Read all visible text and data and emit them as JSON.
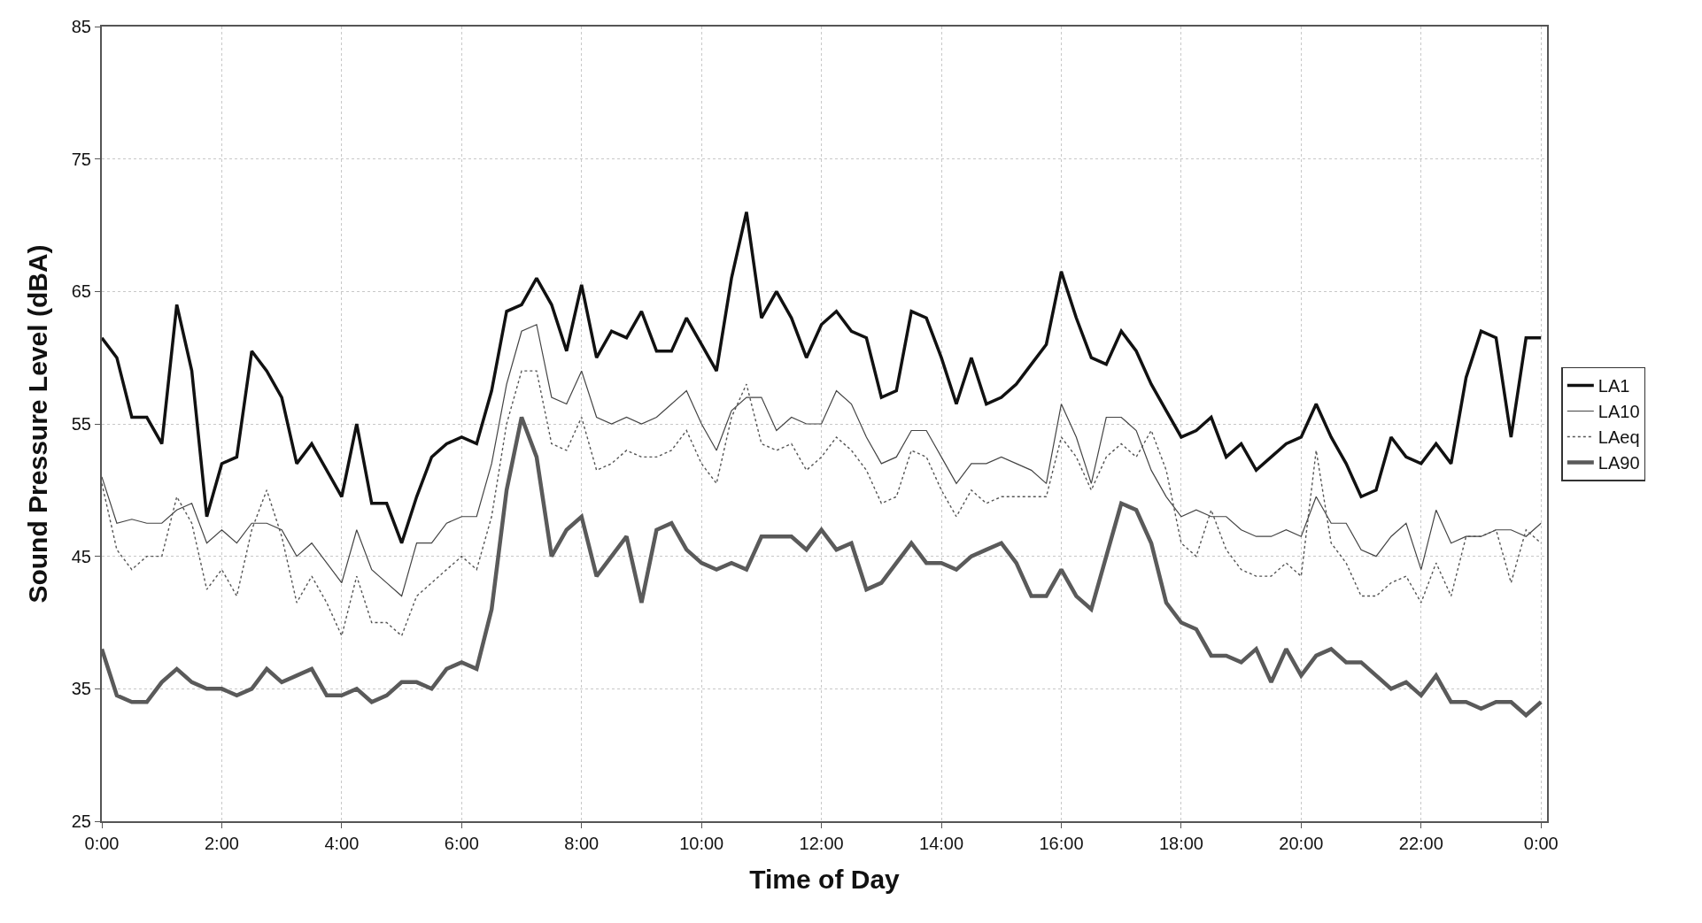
{
  "chart_data": {
    "type": "line",
    "xlabel": "Time of Day",
    "ylabel": "Sound Pressure Level (dBA)",
    "x": [
      0,
      0.25,
      0.5,
      0.75,
      1,
      1.25,
      1.5,
      1.75,
      2,
      2.25,
      2.5,
      2.75,
      3,
      3.25,
      3.5,
      3.75,
      4,
      4.25,
      4.5,
      4.75,
      5,
      5.25,
      5.5,
      5.75,
      6,
      6.25,
      6.5,
      6.75,
      7,
      7.25,
      7.5,
      7.75,
      8,
      8.25,
      8.5,
      8.75,
      9,
      9.25,
      9.5,
      9.75,
      10,
      10.25,
      10.5,
      10.75,
      11,
      11.25,
      11.5,
      11.75,
      12,
      12.25,
      12.5,
      12.75,
      13,
      13.25,
      13.5,
      13.75,
      14,
      14.25,
      14.5,
      14.75,
      15,
      15.25,
      15.5,
      15.75,
      16,
      16.25,
      16.5,
      16.75,
      17,
      17.25,
      17.5,
      17.75,
      18,
      18.25,
      18.5,
      18.75,
      19,
      19.25,
      19.5,
      19.75,
      20,
      20.25,
      20.5,
      20.75,
      21,
      21.25,
      21.5,
      21.75,
      22,
      22.25,
      22.5,
      22.75,
      23,
      23.25,
      23.5,
      23.75,
      24
    ],
    "series": [
      {
        "name": "LA1",
        "color": "#111111",
        "line_style": "solid",
        "values": [
          61.5,
          60,
          55.5,
          55.5,
          53.5,
          64,
          59,
          48,
          52,
          52.5,
          60.5,
          59,
          57,
          52,
          53.5,
          51.5,
          49.5,
          55,
          49,
          49,
          46,
          49.5,
          52.5,
          53.5,
          54,
          53.5,
          57.5,
          63.5,
          64,
          66,
          64,
          60.5,
          65.5,
          60,
          62,
          61.5,
          63.5,
          60.5,
          60.5,
          63,
          61,
          59,
          66,
          71,
          63,
          65,
          63,
          60,
          62.5,
          63.5,
          62,
          61.5,
          57,
          57.5,
          63.5,
          63,
          60,
          56.5,
          60,
          56.5,
          57,
          58,
          59.5,
          61,
          66.5,
          63,
          60,
          59.5,
          62,
          60.5,
          58,
          56,
          54,
          54.5,
          55.5,
          52.5,
          53.5,
          51.5,
          52.5,
          53.5,
          54,
          56.5,
          54,
          52,
          49.5,
          50,
          54,
          52.5,
          52,
          53.5,
          52,
          58.5,
          62,
          61.5,
          54,
          61.5,
          61.5
        ]
      },
      {
        "name": "LA10",
        "color": "#444444",
        "line_style": "solid",
        "values": [
          51,
          47.5,
          47.8,
          47.5,
          47.5,
          48.5,
          49,
          46,
          47,
          46,
          47.5,
          47.5,
          47,
          45,
          46,
          44.5,
          43,
          47,
          44,
          43,
          42,
          46,
          46,
          47.5,
          48,
          48,
          52,
          58,
          62,
          62.5,
          57,
          56.5,
          59,
          55.5,
          55,
          55.5,
          55,
          55.5,
          56.5,
          57.5,
          55,
          53,
          56,
          57,
          57,
          54.5,
          55.5,
          55,
          55,
          57.5,
          56.5,
          54,
          52,
          52.5,
          54.5,
          54.5,
          52.5,
          50.5,
          52,
          52,
          52.5,
          52,
          51.5,
          50.5,
          56.5,
          54,
          50.5,
          55.5,
          55.5,
          54.5,
          51.5,
          49.5,
          48,
          48.5,
          48,
          48,
          47,
          46.5,
          46.5,
          47,
          46.5,
          49.5,
          47.5,
          47.5,
          45.5,
          45,
          46.5,
          47.5,
          44,
          48.5,
          46,
          46.5,
          46.5,
          47,
          47,
          46.5,
          47.5
        ]
      },
      {
        "name": "LAeq",
        "color": "#555555",
        "line_style": "dotted",
        "values": [
          50.5,
          45.5,
          44,
          45,
          45,
          49.5,
          47.5,
          42.5,
          44,
          42,
          47,
          50,
          46.5,
          41.5,
          43.5,
          41.5,
          39,
          43.5,
          40,
          40,
          39,
          42,
          43,
          44,
          45,
          44,
          48,
          55,
          59,
          59,
          53.5,
          53,
          55.5,
          51.5,
          52,
          53,
          52.5,
          52.5,
          53,
          54.5,
          52,
          50.5,
          55.5,
          58,
          53.5,
          53,
          53.5,
          51.5,
          52.5,
          54,
          53,
          51.5,
          49,
          49.5,
          53,
          52.5,
          50,
          48,
          50,
          49,
          49.5,
          49.5,
          49.5,
          49.5,
          54,
          52.5,
          50,
          52.5,
          53.5,
          52.5,
          54.5,
          51.5,
          46,
          45,
          48.5,
          45.5,
          44,
          43.5,
          43.5,
          44.5,
          43.5,
          53,
          46,
          44.5,
          42,
          42,
          43,
          43.5,
          41.5,
          44.5,
          42,
          46.5,
          46.5,
          47,
          43,
          47,
          46
        ]
      },
      {
        "name": "LA90",
        "color": "#5a5a5a",
        "line_style": "solid",
        "values": [
          38,
          34.5,
          34,
          34,
          35.5,
          36.5,
          35.5,
          35,
          35,
          34.5,
          35,
          36.5,
          35.5,
          36,
          36.5,
          34.5,
          34.5,
          35,
          34,
          34.5,
          35.5,
          35.5,
          35,
          36.5,
          37,
          36.5,
          41,
          50,
          55.5,
          52.5,
          45,
          47,
          48,
          43.5,
          45,
          46.5,
          41.5,
          47,
          47.5,
          45.5,
          44.5,
          44,
          44.5,
          44,
          46.5,
          46.5,
          46.5,
          45.5,
          47,
          45.5,
          46,
          42.5,
          43,
          44.5,
          46,
          44.5,
          44.5,
          44,
          45,
          45.5,
          46,
          44.5,
          42,
          42,
          44,
          42,
          41,
          45,
          49,
          48.5,
          46,
          41.5,
          40,
          39.5,
          37.5,
          37.5,
          37,
          38,
          35.5,
          38,
          36,
          37.5,
          38,
          37,
          37,
          36,
          35,
          35.5,
          34.5,
          36,
          34,
          34,
          33.5,
          34,
          34,
          33,
          34
        ]
      }
    ],
    "xlim": [
      0,
      24.1
    ],
    "xticks": [
      {
        "value": 0,
        "label": "0:00"
      },
      {
        "value": 2,
        "label": "2:00"
      },
      {
        "value": 4,
        "label": "4:00"
      },
      {
        "value": 6,
        "label": "6:00"
      },
      {
        "value": 8,
        "label": "8:00"
      },
      {
        "value": 10,
        "label": "10:00"
      },
      {
        "value": 12,
        "label": "12:00"
      },
      {
        "value": 14,
        "label": "14:00"
      },
      {
        "value": 16,
        "label": "16:00"
      },
      {
        "value": 18,
        "label": "18:00"
      },
      {
        "value": 20,
        "label": "20:00"
      },
      {
        "value": 22,
        "label": "22:00"
      },
      {
        "value": 24,
        "label": "0:00"
      }
    ],
    "ylim": [
      25,
      85
    ],
    "yticks": [
      25,
      35,
      45,
      55,
      65,
      75,
      85
    ],
    "grid": true,
    "legend": "right",
    "marker": "none"
  }
}
